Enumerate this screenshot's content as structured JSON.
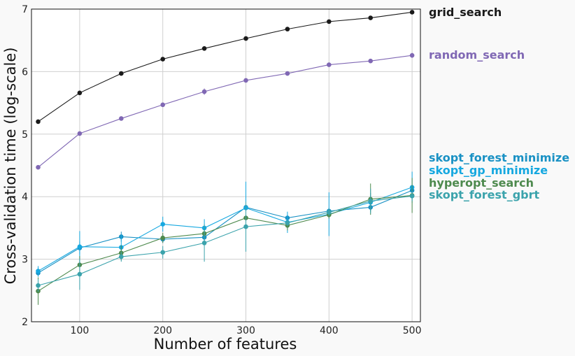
{
  "chart_data": {
    "type": "line",
    "title": "",
    "xlabel": "Number of features",
    "ylabel": "Cross-validation time (log-scale)",
    "xlim": [
      42,
      510
    ],
    "ylim": [
      2,
      7
    ],
    "xticks": [
      100,
      200,
      300,
      400,
      500
    ],
    "yticks": [
      2,
      3,
      4,
      5,
      6,
      7
    ],
    "grid": true,
    "legend": "right",
    "x": [
      50,
      100,
      150,
      200,
      250,
      300,
      350,
      400,
      450,
      500
    ],
    "series": [
      {
        "name": "grid_search",
        "color": "#1a1a1a",
        "values": [
          5.2,
          5.66,
          5.97,
          6.2,
          6.37,
          6.53,
          6.68,
          6.8,
          6.86,
          6.95
        ],
        "errors": [
          0.02,
          0.02,
          0.02,
          0.02,
          0.02,
          0.02,
          0.02,
          0.02,
          0.02,
          0.02
        ]
      },
      {
        "name": "random_search",
        "color": "#8068b4",
        "values": [
          4.47,
          5.01,
          5.25,
          5.47,
          5.68,
          5.86,
          5.97,
          6.11,
          6.17,
          6.26
        ],
        "errors": [
          0.02,
          0.02,
          0.02,
          0.02,
          0.05,
          0.03,
          0.02,
          0.03,
          0.03,
          0.04
        ]
      },
      {
        "name": "skopt_forest_minimize",
        "color": "#1991c4",
        "values": [
          2.78,
          3.18,
          3.36,
          3.32,
          3.35,
          3.83,
          3.66,
          3.77,
          3.83,
          4.1
        ],
        "errors": [
          0.06,
          0.1,
          0.08,
          0.06,
          0.06,
          0.06,
          0.05,
          0.05,
          0.05,
          0.08
        ]
      },
      {
        "name": "skopt_gp_minimize",
        "color": "#16a8e0",
        "values": [
          2.81,
          3.2,
          3.19,
          3.56,
          3.5,
          3.82,
          3.59,
          3.72,
          3.91,
          4.15
        ],
        "errors": [
          0.08,
          0.25,
          0.2,
          0.12,
          0.14,
          0.42,
          0.17,
          0.35,
          0.15,
          0.25
        ]
      },
      {
        "name": "hyperopt_search",
        "color": "#4e8a4e",
        "values": [
          2.49,
          2.91,
          3.1,
          3.34,
          3.41,
          3.66,
          3.54,
          3.71,
          3.96,
          4.02
        ],
        "errors": [
          0.22,
          0.14,
          0.12,
          0.08,
          0.08,
          0.06,
          0.08,
          0.06,
          0.25,
          0.28
        ]
      },
      {
        "name": "skopt_forest_gbrt",
        "color": "#3ba3ac",
        "values": [
          2.58,
          2.76,
          3.04,
          3.11,
          3.26,
          3.52,
          3.58,
          3.75,
          3.93,
          4.01
        ],
        "errors": [
          0.1,
          0.25,
          0.08,
          0.1,
          0.3,
          0.4,
          0.05,
          0.06,
          0.2,
          0.08
        ]
      }
    ]
  }
}
